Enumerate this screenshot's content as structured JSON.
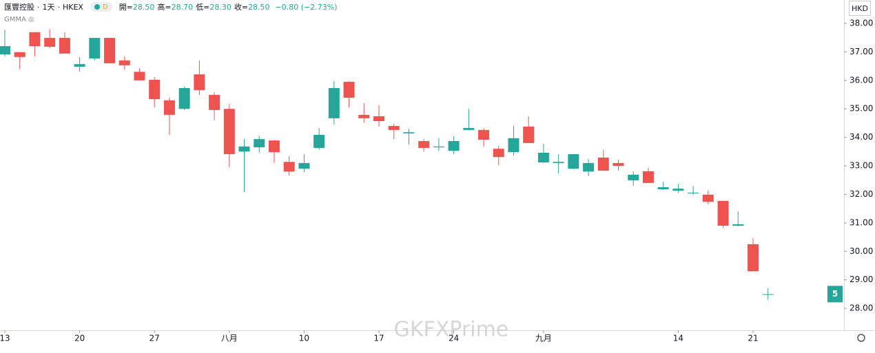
{
  "header": {
    "symbol": "匯豐控股",
    "interval": "1天",
    "exchange": "HKEX",
    "badge": "D",
    "ohlc": [
      {
        "label": "開=",
        "value": "28.50"
      },
      {
        "label": "高=",
        "value": "28.70"
      },
      {
        "label": "低=",
        "value": "28.30"
      },
      {
        "label": "收=",
        "value": "28.50"
      }
    ],
    "change": "−0.80 (−2.73%)",
    "indicator": "GMMA"
  },
  "currency": "HKD",
  "price_label": "5",
  "watermark": "GKFXPrime",
  "chart_data": {
    "type": "candlestick",
    "categories": [
      "13",
      null,
      null,
      null,
      null,
      "20",
      null,
      null,
      null,
      null,
      "27",
      null,
      null,
      null,
      null,
      "八月",
      null,
      null,
      null,
      null,
      "10",
      null,
      null,
      null,
      null,
      "17",
      null,
      null,
      null,
      null,
      "24",
      null,
      null,
      null,
      null,
      null,
      "九月",
      null,
      null,
      null,
      null,
      null,
      null,
      null,
      null,
      "14",
      null,
      null,
      null,
      null,
      "21",
      null
    ],
    "open": [
      36.91,
      36.99,
      37.69,
      37.49,
      37.49,
      36.48,
      36.77,
      37.49,
      36.7,
      36.3,
      36.02,
      35.3,
      35.0,
      36.21,
      35.49,
      35.0,
      33.5,
      33.65,
      33.89,
      33.14,
      32.9,
      33.63,
      34.67,
      35.95,
      34.79,
      34.74,
      34.4,
      34.14,
      33.87,
      33.65,
      33.53,
      34.26,
      34.26,
      33.6,
      33.48,
      34.38,
      33.12,
      33.1,
      32.9,
      32.8,
      33.29,
      33.1,
      32.49,
      32.81,
      32.18,
      32.13,
      32.04,
      31.99,
      31.77,
      30.9,
      30.25,
      28.5
    ],
    "high": [
      37.78,
      37.0,
      37.69,
      37.8,
      37.69,
      36.82,
      37.49,
      37.49,
      36.84,
      36.43,
      36.12,
      35.4,
      35.78,
      36.7,
      35.58,
      35.17,
      33.94,
      34.06,
      33.92,
      33.34,
      33.41,
      34.33,
      35.97,
      35.97,
      35.2,
      35.13,
      34.47,
      34.3,
      33.94,
      33.97,
      34.04,
      35.0,
      34.33,
      33.7,
      34.4,
      34.74,
      33.77,
      33.41,
      33.41,
      33.24,
      33.56,
      33.22,
      32.81,
      32.93,
      32.44,
      32.37,
      32.29,
      32.13,
      31.77,
      31.4,
      30.46,
      28.7
    ],
    "low": [
      36.84,
      36.4,
      36.84,
      37.13,
      36.94,
      36.3,
      36.7,
      36.6,
      36.38,
      36.0,
      35.05,
      34.09,
      34.96,
      35.49,
      34.6,
      32.95,
      32.08,
      33.46,
      33.1,
      32.66,
      32.78,
      33.56,
      34.45,
      35.05,
      34.52,
      34.38,
      33.94,
      33.75,
      33.5,
      33.53,
      33.41,
      34.24,
      33.68,
      33.02,
      33.36,
      33.8,
      33.1,
      32.73,
      32.88,
      32.64,
      32.83,
      32.83,
      32.3,
      32.4,
      32.15,
      32.05,
      31.98,
      31.65,
      30.83,
      30.88,
      29.3,
      28.3
    ],
    "close": [
      37.2,
      36.82,
      37.2,
      37.18,
      36.94,
      36.57,
      37.49,
      36.6,
      36.53,
      36.0,
      35.34,
      34.79,
      35.73,
      35.66,
      34.96,
      33.41,
      33.68,
      33.94,
      33.48,
      32.8,
      33.1,
      34.09,
      35.73,
      35.39,
      34.67,
      34.57,
      34.26,
      34.18,
      33.63,
      33.68,
      33.87,
      34.33,
      33.92,
      33.31,
      33.97,
      33.8,
      33.46,
      33.14,
      33.41,
      33.1,
      32.83,
      33.0,
      32.69,
      32.4,
      32.25,
      32.2,
      32.06,
      31.74,
      30.9,
      30.95,
      29.3,
      28.5
    ],
    "up_color": "#26a69a",
    "down_color": "#ef5350",
    "ylim": [
      27.23,
      38.82
    ],
    "yticks": [
      {
        "value": 28,
        "label": "28.00"
      },
      {
        "value": 29,
        "label": "29.00"
      },
      {
        "value": 30,
        "label": "30.00"
      },
      {
        "value": 31,
        "label": "31.00"
      },
      {
        "value": 32,
        "label": "32.00"
      },
      {
        "value": 33,
        "label": "33.00"
      },
      {
        "value": 34,
        "label": "34.00"
      },
      {
        "value": 35,
        "label": "35.00"
      },
      {
        "value": 36,
        "label": "36.00"
      },
      {
        "value": 37,
        "label": "37.00"
      },
      {
        "value": 38,
        "label": "38.00"
      }
    ],
    "grid": false
  }
}
